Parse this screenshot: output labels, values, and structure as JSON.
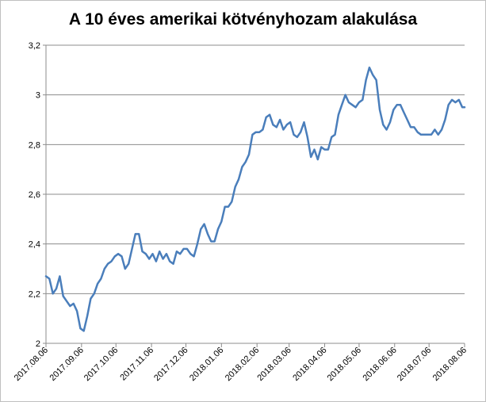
{
  "chart_data": {
    "type": "line",
    "title": "A 10 éves amerikai kötvényhozam alakulása",
    "xlabel": "",
    "ylabel": "",
    "ylim": [
      2,
      3.2
    ],
    "y_ticks": [
      "2",
      "2,2",
      "2,4",
      "2,6",
      "2,8",
      "3",
      "3,2"
    ],
    "y_tick_values": [
      2,
      2.2,
      2.4,
      2.6,
      2.8,
      3,
      3.2
    ],
    "x_ticks": [
      "2017.08.06",
      "2017.09.06",
      "2017.10.06",
      "2017.11.06",
      "2017.12.06",
      "2018.01.06",
      "2018.02.06",
      "2018.03.06",
      "2018.04.06",
      "2018.05.06",
      "2018.06.06",
      "2018.07.06",
      "2018.08.06"
    ],
    "grid": true,
    "legend": "none",
    "series_color": "#4a7ebb",
    "series": [
      {
        "x": [
          "2017.08.06",
          "2017.08.09",
          "2017.08.12",
          "2017.08.15",
          "2017.08.18",
          "2017.08.21",
          "2017.08.24",
          "2017.08.27",
          "2017.08.30",
          "2017.09.02",
          "2017.09.05",
          "2017.09.08",
          "2017.09.11",
          "2017.09.14",
          "2017.09.17",
          "2017.09.20",
          "2017.09.23",
          "2017.09.26",
          "2017.09.29",
          "2017.10.02",
          "2017.10.05",
          "2017.10.08",
          "2017.10.11",
          "2017.10.14",
          "2017.10.17",
          "2017.10.20",
          "2017.10.23",
          "2017.10.26",
          "2017.10.29",
          "2017.11.01",
          "2017.11.04",
          "2017.11.07",
          "2017.11.10",
          "2017.11.13",
          "2017.11.16",
          "2017.11.19",
          "2017.11.22",
          "2017.11.25",
          "2017.11.28",
          "2017.12.01",
          "2017.12.04",
          "2017.12.07",
          "2017.12.10",
          "2017.12.13",
          "2017.12.16",
          "2017.12.19",
          "2017.12.22",
          "2017.12.25",
          "2017.12.28",
          "2017.12.31",
          "2018.01.03",
          "2018.01.06",
          "2018.01.09",
          "2018.01.12",
          "2018.01.15",
          "2018.01.18",
          "2018.01.21",
          "2018.01.24",
          "2018.01.27",
          "2018.01.30",
          "2018.02.02",
          "2018.02.05",
          "2018.02.08",
          "2018.02.11",
          "2018.02.14",
          "2018.02.17",
          "2018.02.20",
          "2018.02.23",
          "2018.02.26",
          "2018.03.01",
          "2018.03.04",
          "2018.03.07",
          "2018.03.10",
          "2018.03.13",
          "2018.03.16",
          "2018.03.19",
          "2018.03.22",
          "2018.03.25",
          "2018.03.28",
          "2018.03.31",
          "2018.04.03",
          "2018.04.06",
          "2018.04.09",
          "2018.04.12",
          "2018.04.15",
          "2018.04.18",
          "2018.04.21",
          "2018.04.24",
          "2018.04.27",
          "2018.04.30",
          "2018.05.03",
          "2018.05.06",
          "2018.05.09",
          "2018.05.12",
          "2018.05.15",
          "2018.05.18",
          "2018.05.21",
          "2018.05.24",
          "2018.05.27",
          "2018.05.30",
          "2018.06.02",
          "2018.06.05",
          "2018.06.08",
          "2018.06.11",
          "2018.06.14",
          "2018.06.17",
          "2018.06.20",
          "2018.06.23",
          "2018.06.26",
          "2018.06.29",
          "2018.07.02",
          "2018.07.05",
          "2018.07.08",
          "2018.07.11",
          "2018.07.14",
          "2018.07.17",
          "2018.07.20",
          "2018.07.23",
          "2018.07.26",
          "2018.07.29",
          "2018.08.01",
          "2018.08.04",
          "2018.08.06"
        ],
        "values": [
          2.27,
          2.26,
          2.2,
          2.22,
          2.27,
          2.19,
          2.17,
          2.15,
          2.16,
          2.13,
          2.06,
          2.05,
          2.11,
          2.18,
          2.2,
          2.24,
          2.26,
          2.3,
          2.32,
          2.33,
          2.35,
          2.36,
          2.35,
          2.3,
          2.32,
          2.38,
          2.44,
          2.44,
          2.37,
          2.36,
          2.34,
          2.36,
          2.33,
          2.37,
          2.34,
          2.36,
          2.33,
          2.32,
          2.37,
          2.36,
          2.38,
          2.38,
          2.36,
          2.35,
          2.4,
          2.46,
          2.48,
          2.44,
          2.41,
          2.41,
          2.46,
          2.49,
          2.55,
          2.55,
          2.57,
          2.63,
          2.66,
          2.71,
          2.73,
          2.76,
          2.84,
          2.85,
          2.85,
          2.86,
          2.91,
          2.92,
          2.88,
          2.87,
          2.9,
          2.86,
          2.88,
          2.89,
          2.84,
          2.83,
          2.85,
          2.89,
          2.83,
          2.75,
          2.78,
          2.74,
          2.79,
          2.78,
          2.78,
          2.83,
          2.84,
          2.92,
          2.96,
          3.0,
          2.97,
          2.96,
          2.95,
          2.97,
          2.98,
          3.06,
          3.11,
          3.08,
          3.06,
          2.94,
          2.88,
          2.86,
          2.89,
          2.94,
          2.96,
          2.96,
          2.93,
          2.9,
          2.87,
          2.87,
          2.85,
          2.84,
          2.84,
          2.84,
          2.84,
          2.86,
          2.84,
          2.86,
          2.9,
          2.96,
          2.98,
          2.97,
          2.98,
          2.95,
          2.95
        ]
      }
    ]
  }
}
